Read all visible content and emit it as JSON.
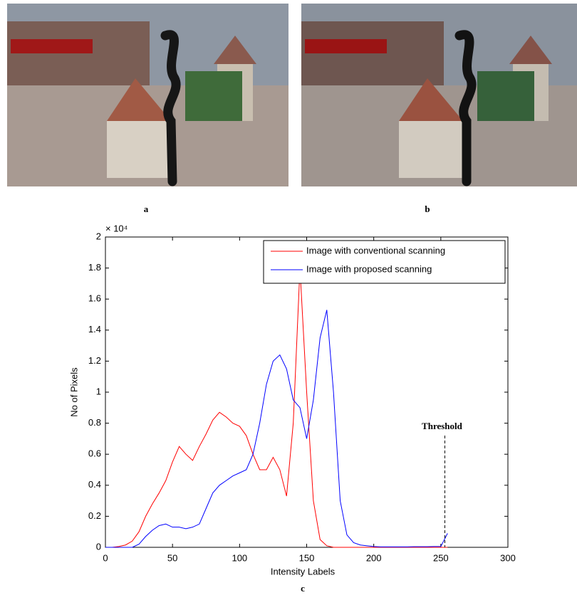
{
  "panels": {
    "labels": [
      "a",
      "b",
      "c"
    ]
  },
  "chart_data": {
    "type": "line",
    "xlabel": "Intensity Labels",
    "ylabel": "No of Pixels",
    "y_scale_label": "× 10⁴",
    "x": [
      0,
      5,
      10,
      15,
      20,
      25,
      30,
      35,
      40,
      45,
      50,
      55,
      60,
      65,
      70,
      75,
      80,
      85,
      90,
      95,
      100,
      105,
      110,
      115,
      120,
      125,
      130,
      135,
      140,
      145,
      150,
      155,
      160,
      165,
      170,
      175,
      180,
      185,
      190,
      195,
      200,
      205,
      210,
      215,
      220,
      225,
      230,
      235,
      240,
      245,
      250,
      255
    ],
    "series": [
      {
        "name": "Image with conventional scanning",
        "color": "#ff0000",
        "values": [
          0,
          0,
          50,
          150,
          400,
          1000,
          2000,
          2800,
          3500,
          4300,
          5500,
          6500,
          6000,
          5600,
          6500,
          7300,
          8200,
          8700,
          8400,
          8000,
          7800,
          7200,
          6000,
          5000,
          5000,
          5800,
          5000,
          3300,
          8000,
          18000,
          10000,
          3000,
          500,
          100,
          0,
          0,
          0,
          0,
          0,
          0,
          0,
          0,
          0,
          0,
          0,
          0,
          0,
          0,
          0,
          0,
          0,
          0
        ]
      },
      {
        "name": "Image with proposed scanning",
        "color": "#0000ff",
        "values": [
          0,
          0,
          0,
          0,
          0,
          200,
          700,
          1100,
          1400,
          1500,
          1300,
          1300,
          1200,
          1300,
          1500,
          2500,
          3500,
          4000,
          4300,
          4600,
          4800,
          5000,
          6000,
          8000,
          10500,
          12000,
          12400,
          11500,
          9500,
          9000,
          7000,
          9500,
          13500,
          15300,
          10000,
          3000,
          800,
          300,
          150,
          100,
          50,
          30,
          30,
          30,
          30,
          30,
          40,
          40,
          40,
          50,
          50,
          900
        ]
      }
    ],
    "xlim": [
      0,
      300
    ],
    "xticks": [
      0,
      50,
      100,
      150,
      200,
      250,
      300
    ],
    "ylim": [
      0,
      20000
    ],
    "yticks": [
      0,
      {
        "value": 2000,
        "label": "0.2"
      },
      {
        "value": 4000,
        "label": "0.4"
      },
      {
        "value": 6000,
        "label": "0.6"
      },
      {
        "value": 8000,
        "label": "0.8"
      },
      {
        "value": 10000,
        "label": "1"
      },
      {
        "value": 12000,
        "label": "1.2"
      },
      {
        "value": 14000,
        "label": "1.4"
      },
      {
        "value": 16000,
        "label": "1.6"
      },
      {
        "value": 18000,
        "label": "1.8"
      },
      {
        "value": 20000,
        "label": "2"
      }
    ],
    "legend": "upper right",
    "annotations": [
      {
        "text": "Threshold",
        "x": 253
      }
    ]
  }
}
